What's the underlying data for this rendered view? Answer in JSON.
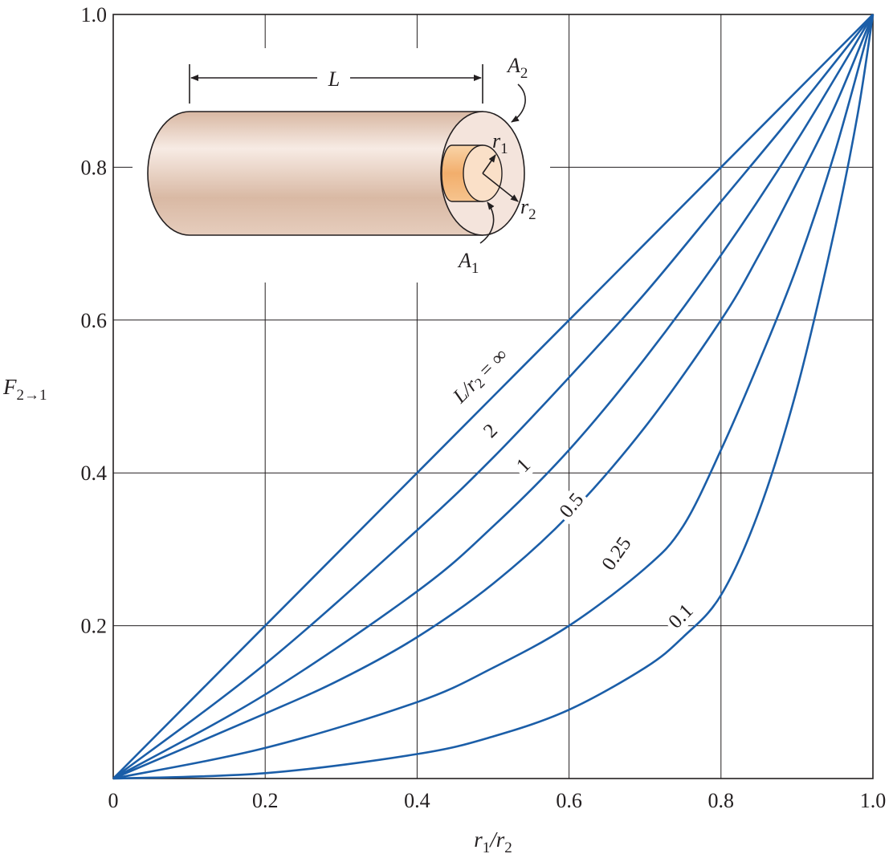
{
  "chart_data": {
    "type": "line",
    "title": "",
    "xlabel_main": "r",
    "xlabel_sub1": "1",
    "xlabel_sep": "/r",
    "xlabel_sub2": "2",
    "ylabel_main": "F",
    "ylabel_sub": "2→1",
    "xlim": [
      0,
      1
    ],
    "ylim": [
      0,
      1
    ],
    "x_ticks": [
      "0",
      "0.2",
      "0.4",
      "0.6",
      "0.8",
      "1.0"
    ],
    "y_ticks": [
      "0.2",
      "0.4",
      "0.6",
      "0.8",
      "1.0"
    ],
    "grid": true,
    "line_color": "#1b5ea8",
    "series": [
      {
        "name": "L/r2 = ∞",
        "label_parts": [
          "L/r",
          "2",
          " = ∞"
        ],
        "x": [
          0,
          0.2,
          0.4,
          0.6,
          0.8,
          1.0
        ],
        "y": [
          0,
          0.2,
          0.4,
          0.6,
          0.8,
          1.0
        ]
      },
      {
        "name": "2",
        "label_parts": [
          "2"
        ],
        "x": [
          0,
          0.2,
          0.4,
          0.5,
          0.6,
          0.7,
          0.8,
          0.9,
          1.0
        ],
        "y": [
          0,
          0.15,
          0.325,
          0.42,
          0.525,
          0.635,
          0.755,
          0.875,
          1.0
        ]
      },
      {
        "name": "1",
        "label_parts": [
          "1"
        ],
        "x": [
          0,
          0.2,
          0.4,
          0.5,
          0.6,
          0.7,
          0.8,
          0.9,
          1.0
        ],
        "y": [
          0,
          0.11,
          0.245,
          0.33,
          0.43,
          0.55,
          0.685,
          0.835,
          1.0
        ]
      },
      {
        "name": "0.5",
        "label_parts": [
          "0.5"
        ],
        "x": [
          0,
          0.2,
          0.3,
          0.4,
          0.5,
          0.6,
          0.7,
          0.8,
          0.85,
          0.9,
          0.95,
          1.0
        ],
        "y": [
          0,
          0.085,
          0.13,
          0.185,
          0.255,
          0.345,
          0.46,
          0.6,
          0.685,
          0.78,
          0.88,
          1.0
        ]
      },
      {
        "name": "0.25",
        "label_parts": [
          "0.25"
        ],
        "x": [
          0,
          0.2,
          0.4,
          0.5,
          0.6,
          0.7,
          0.75,
          0.8,
          0.85,
          0.9,
          0.95,
          1.0
        ],
        "y": [
          0,
          0.04,
          0.1,
          0.145,
          0.2,
          0.275,
          0.33,
          0.43,
          0.545,
          0.67,
          0.82,
          1.0
        ]
      },
      {
        "name": "0.1",
        "label_parts": [
          "0.1"
        ],
        "x": [
          0,
          0.2,
          0.4,
          0.5,
          0.6,
          0.7,
          0.75,
          0.8,
          0.85,
          0.9,
          0.95,
          0.98,
          1.0
        ],
        "y": [
          0,
          0.007,
          0.032,
          0.055,
          0.09,
          0.145,
          0.185,
          0.24,
          0.35,
          0.51,
          0.72,
          0.87,
          1.0
        ]
      }
    ]
  },
  "inset": {
    "length_label": "L",
    "outer_area": {
      "main": "A",
      "sub": "2"
    },
    "inner_area": {
      "main": "A",
      "sub": "1"
    },
    "inner_radius": {
      "main": "r",
      "sub": "1"
    },
    "outer_radius": {
      "main": "r",
      "sub": "2"
    },
    "body_color": "#e2c4b0",
    "face_color": "#f4e4dc",
    "inner_color": "#f5c089"
  }
}
